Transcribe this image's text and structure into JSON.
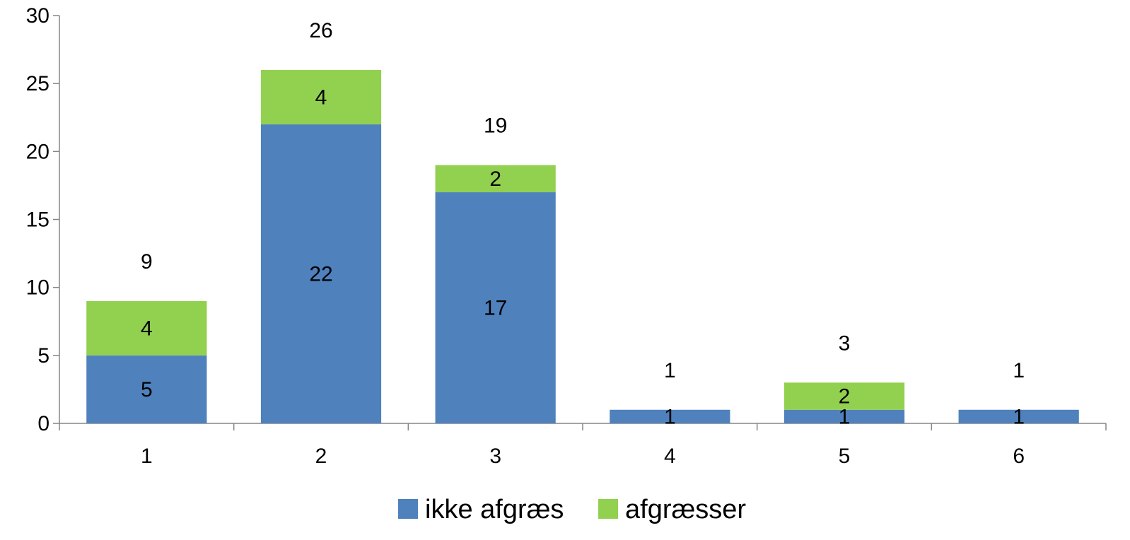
{
  "chart_data": {
    "type": "bar",
    "stacked": true,
    "categories": [
      "1",
      "2",
      "3",
      "4",
      "5",
      "6"
    ],
    "series": [
      {
        "name": "ikke afgræs",
        "values": [
          5,
          22,
          17,
          1,
          1,
          1
        ],
        "labels": [
          "5",
          "22",
          "17",
          "1",
          "1",
          "1"
        ],
        "color": "#4F81BD"
      },
      {
        "name": "afgræsser",
        "values": [
          4,
          4,
          2,
          0,
          2,
          0
        ],
        "labels": [
          "4",
          "4",
          "2",
          "",
          "2",
          ""
        ],
        "color": "#92D050"
      }
    ],
    "totals": [
      9,
      26,
      19,
      1,
      3,
      1
    ],
    "total_labels": [
      "9",
      "26",
      "19",
      "1",
      "3",
      "1"
    ],
    "ylim": [
      0,
      30
    ],
    "yticks": [
      0,
      5,
      10,
      15,
      20,
      25,
      30
    ],
    "ytick_labels": [
      "0",
      "5",
      "10",
      "15",
      "20",
      "25",
      "30"
    ],
    "grid": false,
    "legend_position": "bottom",
    "title": "",
    "xlabel": "",
    "ylabel": ""
  }
}
